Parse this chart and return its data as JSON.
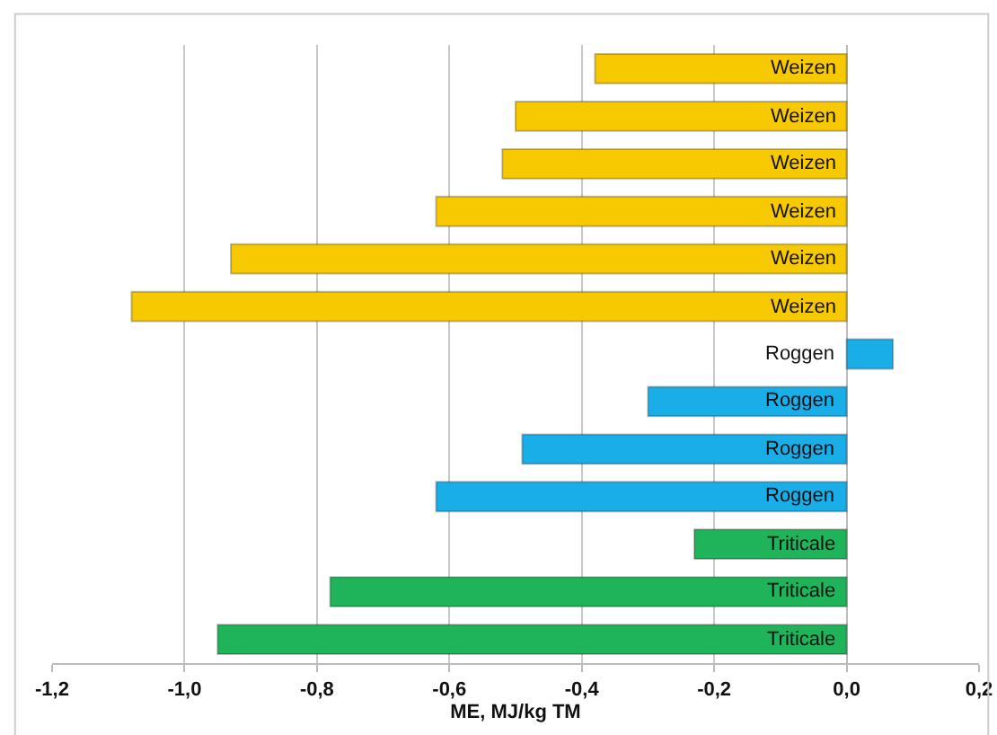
{
  "chart_data": {
    "type": "bar",
    "orientation": "horizontal",
    "xlabel": "ME, MJ/kg TM",
    "categories": [
      "Weizen",
      "Weizen",
      "Weizen",
      "Weizen",
      "Weizen",
      "Weizen",
      "Roggen",
      "Roggen",
      "Roggen",
      "Roggen",
      "Triticale",
      "Triticale",
      "Triticale"
    ],
    "values": [
      -0.38,
      -0.5,
      -0.52,
      -0.62,
      -0.93,
      -1.08,
      0.07,
      -0.3,
      -0.49,
      -0.62,
      -0.23,
      -0.78,
      -0.95
    ],
    "colors": [
      "#f7c900",
      "#f7c900",
      "#f7c900",
      "#f7c900",
      "#f7c900",
      "#f7c900",
      "#1aaee8",
      "#1aaee8",
      "#1aaee8",
      "#1aaee8",
      "#1fb35a",
      "#1fb35a",
      "#1fb35a"
    ],
    "xlim": [
      -1.2,
      0.2
    ],
    "xticks": [
      {
        "value": -1.2,
        "label": "-1,2"
      },
      {
        "value": -1.0,
        "label": "-1,0"
      },
      {
        "value": -0.8,
        "label": "-0,8"
      },
      {
        "value": -0.6,
        "label": "-0,6"
      },
      {
        "value": -0.4,
        "label": "-0,4"
      },
      {
        "value": -0.2,
        "label": "-0,2"
      },
      {
        "value": 0,
        "label": "0,0"
      },
      {
        "value": 0.2,
        "label": "0,2"
      }
    ],
    "grid": "x"
  }
}
